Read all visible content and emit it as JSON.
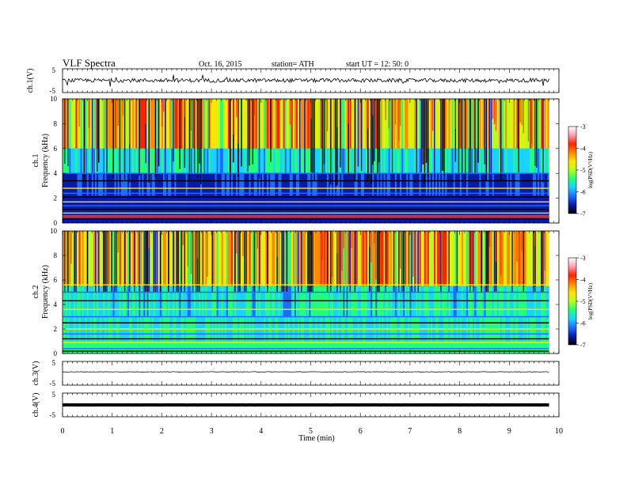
{
  "header": {
    "title": "VLF  Spectra",
    "date": "Oct. 16, 2015",
    "station": "station= ATH",
    "start": "start  UT  =   12: 50: 0"
  },
  "colorbar": {
    "label": "log(PSD(V²/Hz)",
    "ticks": [
      "-3",
      "-4",
      "-5",
      "-6",
      "-7"
    ],
    "colors": [
      "#000000",
      "#0a1aa8",
      "#1e6cff",
      "#19d2ff",
      "#22ff7a",
      "#b4ff1c",
      "#ffe600",
      "#ff8a00",
      "#ff2200",
      "#ff9fb0",
      "#ffffff"
    ]
  },
  "chart_data": [
    {
      "type": "line",
      "name": "ch.1",
      "ylabel": "ch.1(V)",
      "ylim": [
        -5,
        5
      ],
      "yticks": [
        "5",
        "-5"
      ],
      "xlim": [
        0,
        10
      ],
      "baseline": 0.1,
      "trace_end": 9.8
    },
    {
      "type": "heatmap",
      "name": "ch.1 spectrogram",
      "ylabel_1": "ch.1",
      "ylabel_2": "Frequency  (kHz)",
      "ylim": [
        0,
        10
      ],
      "yticks": [
        "10",
        "8",
        "6",
        "4",
        "2",
        "0"
      ],
      "xlim": [
        0,
        10
      ],
      "zlim": [
        -7,
        -3
      ],
      "trace_end": 9.8,
      "bands_kHz": [
        0.3,
        0.6,
        0.8,
        1.1,
        1.4,
        1.7,
        2.1,
        2.4,
        2.8,
        3.4,
        4.0
      ]
    },
    {
      "type": "heatmap",
      "name": "ch.2 spectrogram",
      "ylabel_1": "ch.2",
      "ylabel_2": "Frequency  (kHz)",
      "ylim": [
        0,
        10
      ],
      "yticks": [
        "10",
        "8",
        "6",
        "4",
        "2",
        "0"
      ],
      "xlim": [
        0,
        10
      ],
      "zlim": [
        -7,
        -3
      ],
      "trace_end": 9.8,
      "bands_kHz": [
        0.2,
        0.4,
        0.9,
        1.2,
        1.6,
        2.0,
        2.5,
        3.0,
        3.6,
        4.3,
        5.0,
        5.6
      ]
    },
    {
      "type": "line",
      "name": "ch.3",
      "ylabel": "ch.3(V)",
      "ylim": [
        -5,
        5
      ],
      "yticks": [
        "5",
        "-5"
      ],
      "xlim": [
        0,
        10
      ],
      "baseline": 0.6,
      "trace_end": 9.8
    },
    {
      "type": "line",
      "name": "ch.4",
      "ylabel": "ch.4(V)",
      "ylim": [
        -5,
        5
      ],
      "yticks": [
        "5",
        "-5"
      ],
      "xlim": [
        0,
        10
      ],
      "baseline": 0.0,
      "trace_end": 9.8
    }
  ],
  "xaxis": {
    "label": "Time  (min)",
    "ticks": [
      "0",
      "1",
      "2",
      "3",
      "4",
      "5",
      "6",
      "7",
      "8",
      "9",
      "10"
    ]
  }
}
